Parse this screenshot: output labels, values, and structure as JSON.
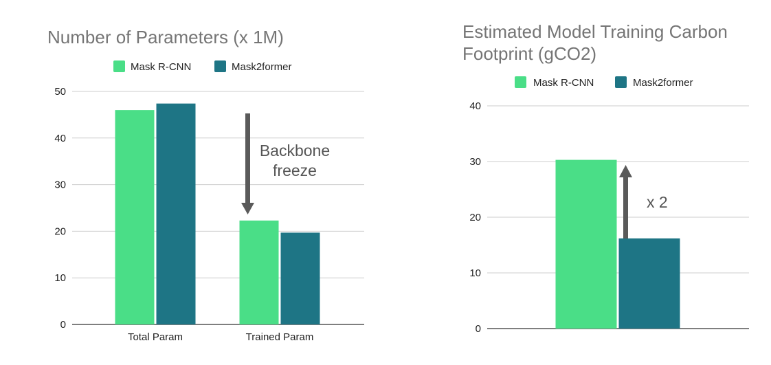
{
  "chart_data": [
    {
      "type": "bar",
      "title": "Number of Parameters (x 1M)",
      "categories": [
        "Total Param",
        "Trained Param"
      ],
      "series": [
        {
          "name": "Mask R-CNN",
          "color": "#4ADE87",
          "values": [
            46,
            22.3
          ]
        },
        {
          "name": "Mask2former",
          "color": "#1E7585",
          "values": [
            47.4,
            19.7
          ]
        }
      ],
      "ylim": [
        0,
        50
      ],
      "yticks": [
        0,
        10,
        20,
        30,
        40,
        50
      ],
      "grid": true,
      "legend": "top",
      "annotation": {
        "text_lines": [
          "Backbone",
          "freeze"
        ],
        "arrow": "down"
      }
    },
    {
      "type": "bar",
      "title_lines": [
        "Estimated Model Training Carbon",
        "Footprint (gCO2)"
      ],
      "categories": [
        ""
      ],
      "series": [
        {
          "name": "Mask R-CNN",
          "color": "#4ADE87",
          "values": [
            30.3
          ]
        },
        {
          "name": "Mask2former",
          "color": "#1E7585",
          "values": [
            16.2
          ]
        }
      ],
      "ylim": [
        0,
        40
      ],
      "yticks": [
        0,
        10,
        20,
        30,
        40
      ],
      "grid": true,
      "legend": "top",
      "annotation": {
        "text": "x 2",
        "arrow": "up"
      }
    }
  ]
}
